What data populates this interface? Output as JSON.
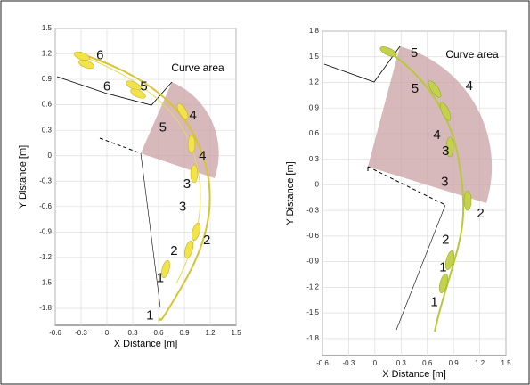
{
  "chart_data": [
    {
      "type": "scatter",
      "xlabel": "X Distance [m]",
      "ylabel": "Y Distance [m]",
      "annotation": "Curve area",
      "xlim": [
        -0.6,
        1.5
      ],
      "xticks": [
        -0.6,
        -0.3,
        0,
        0.3,
        0.6,
        0.9,
        1.2,
        1.5
      ],
      "ylim": [
        -2.0,
        1.5
      ],
      "yticks": [
        1.5,
        1.2,
        0.9,
        0.6,
        0.3,
        0,
        -0.3,
        -0.6,
        -0.9,
        -1.2,
        -1.5,
        -1.8
      ],
      "grid": true,
      "series": [
        {
          "color": "#000000",
          "x": [
            -0.08,
            0.0,
            0.43,
            0.65,
            1.0,
            1.11,
            0.93,
            0.88,
            1.16,
            0.78,
            0.62,
            0.5
          ],
          "y": [
            1.18,
            0.81,
            0.81,
            0.33,
            0.47,
            -0.01,
            -0.34,
            -0.61,
            -1.0,
            -1.13,
            -1.45,
            -1.89
          ],
          "labels": [
            "6",
            "6",
            "5",
            "5",
            "4",
            "4",
            "3",
            "3",
            "2",
            "2",
            "1",
            "1"
          ]
        }
      ]
    },
    {
      "type": "scatter",
      "xlabel": "X Distance [m]",
      "ylabel": "Y Distance [m]",
      "annotation": "Curve area",
      "xlim": [
        -0.6,
        1.5
      ],
      "xticks": [
        -0.6,
        -0.3,
        0,
        0.3,
        0.6,
        0.9,
        1.2,
        1.5
      ],
      "ylim": [
        -2.0,
        1.8
      ],
      "yticks": [
        1.8,
        1.5,
        1.2,
        0.9,
        0.6,
        0.3,
        0,
        -0.3,
        -0.6,
        -0.9,
        -1.2,
        -1.5,
        -1.8
      ],
      "grid": true,
      "series": [
        {
          "color": "#000000",
          "x": [
            0.45,
            0.46,
            1.08,
            0.71,
            0.81,
            0.8,
            1.21,
            0.81,
            0.78,
            0.68
          ],
          "y": [
            1.54,
            1.12,
            1.15,
            0.58,
            0.39,
            0.03,
            -0.34,
            -0.65,
            -0.97,
            -1.38
          ],
          "labels": [
            "5",
            "5",
            "4",
            "4",
            "3",
            "3",
            "2",
            "2",
            "1",
            "1"
          ]
        }
      ]
    }
  ]
}
